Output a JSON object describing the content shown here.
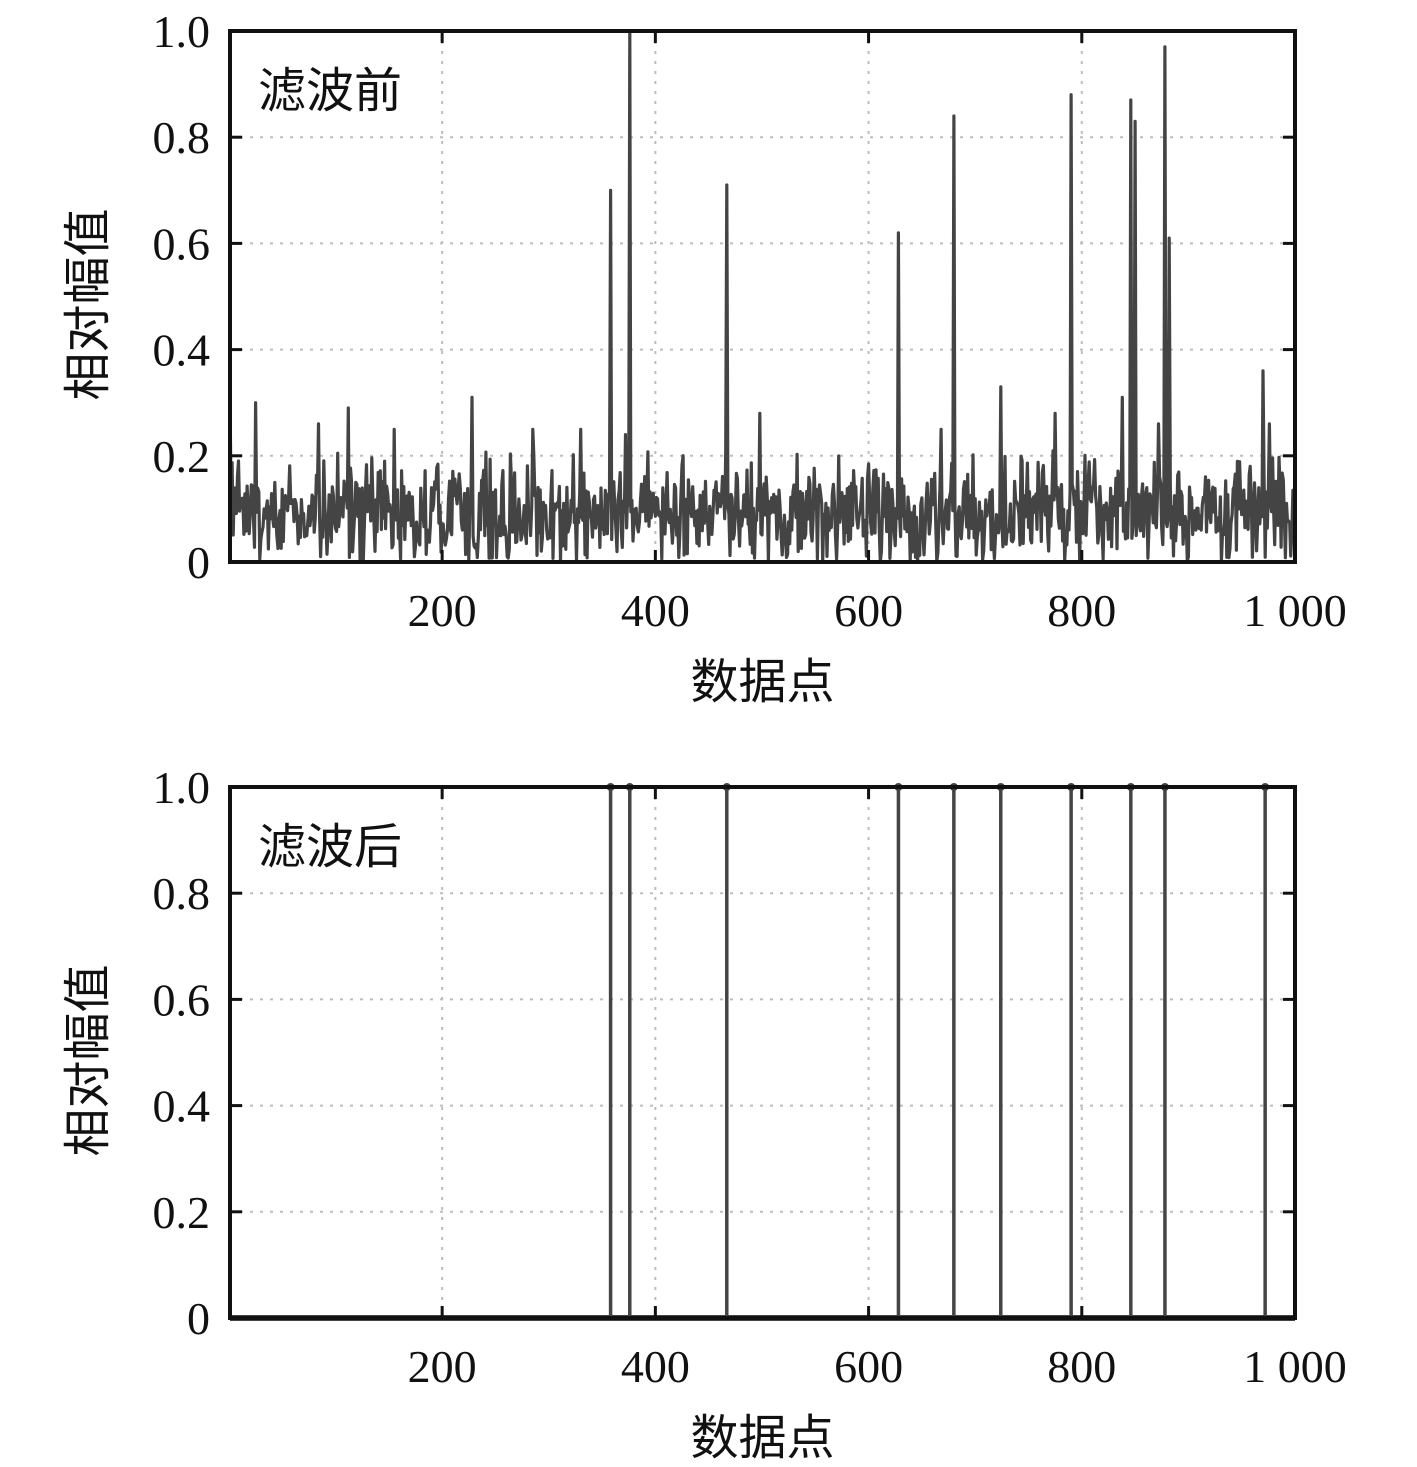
{
  "colors": {
    "series": "#444444",
    "axis": "#111111",
    "grid": "#bdbdbd"
  },
  "chart_data": [
    {
      "type": "line",
      "panel_label": "滤波前",
      "xlabel": "数据点",
      "ylabel": "相对幅值",
      "xlim": [
        1,
        1000
      ],
      "ylim": [
        0,
        1.0
      ],
      "x_ticks": [
        200,
        400,
        600,
        800,
        1000
      ],
      "x_tick_labels": [
        "200",
        "400",
        "600",
        "800",
        "1 000"
      ],
      "y_ticks": [
        0,
        0.2,
        0.4,
        0.6,
        0.8,
        1.0
      ],
      "y_tick_labels": [
        "0",
        "0.2",
        "0.4",
        "0.6",
        "0.8",
        "1.0"
      ],
      "grid": true,
      "noise_level": 0.08,
      "peaks": [
        {
          "x": 1,
          "y": 0.31
        },
        {
          "x": 25,
          "y": 0.3
        },
        {
          "x": 84,
          "y": 0.26
        },
        {
          "x": 112,
          "y": 0.29
        },
        {
          "x": 155,
          "y": 0.25
        },
        {
          "x": 228,
          "y": 0.31
        },
        {
          "x": 285,
          "y": 0.25
        },
        {
          "x": 330,
          "y": 0.25
        },
        {
          "x": 358,
          "y": 0.7
        },
        {
          "x": 372,
          "y": 0.24
        },
        {
          "x": 376,
          "y": 1.0
        },
        {
          "x": 467,
          "y": 0.71
        },
        {
          "x": 498,
          "y": 0.28
        },
        {
          "x": 628,
          "y": 0.62
        },
        {
          "x": 668,
          "y": 0.25
        },
        {
          "x": 680,
          "y": 0.84
        },
        {
          "x": 724,
          "y": 0.33
        },
        {
          "x": 775,
          "y": 0.28
        },
        {
          "x": 790,
          "y": 0.88
        },
        {
          "x": 838,
          "y": 0.31
        },
        {
          "x": 846,
          "y": 0.87
        },
        {
          "x": 850,
          "y": 0.83
        },
        {
          "x": 872,
          "y": 0.26
        },
        {
          "x": 878,
          "y": 0.97
        },
        {
          "x": 882,
          "y": 0.61
        },
        {
          "x": 970,
          "y": 0.36
        },
        {
          "x": 976,
          "y": 0.26
        }
      ]
    },
    {
      "type": "stem",
      "panel_label": "滤波后",
      "xlabel": "数据点",
      "ylabel": "相对幅值",
      "xlim": [
        1,
        1000
      ],
      "ylim": [
        0,
        1.0
      ],
      "x_ticks": [
        200,
        400,
        600,
        800,
        1000
      ],
      "x_tick_labels": [
        "200",
        "400",
        "600",
        "800",
        "1 000"
      ],
      "y_ticks": [
        0,
        0.2,
        0.4,
        0.6,
        0.8,
        1.0
      ],
      "y_tick_labels": [
        "0",
        "0.2",
        "0.4",
        "0.6",
        "0.8",
        "1.0"
      ],
      "grid": true,
      "stems": [
        {
          "x": 358,
          "y": 1.0
        },
        {
          "x": 376,
          "y": 1.0
        },
        {
          "x": 467,
          "y": 1.0
        },
        {
          "x": 628,
          "y": 1.0
        },
        {
          "x": 680,
          "y": 1.0
        },
        {
          "x": 724,
          "y": 1.0
        },
        {
          "x": 790,
          "y": 1.0
        },
        {
          "x": 846,
          "y": 1.0
        },
        {
          "x": 878,
          "y": 1.0
        },
        {
          "x": 972,
          "y": 1.0
        }
      ]
    }
  ]
}
